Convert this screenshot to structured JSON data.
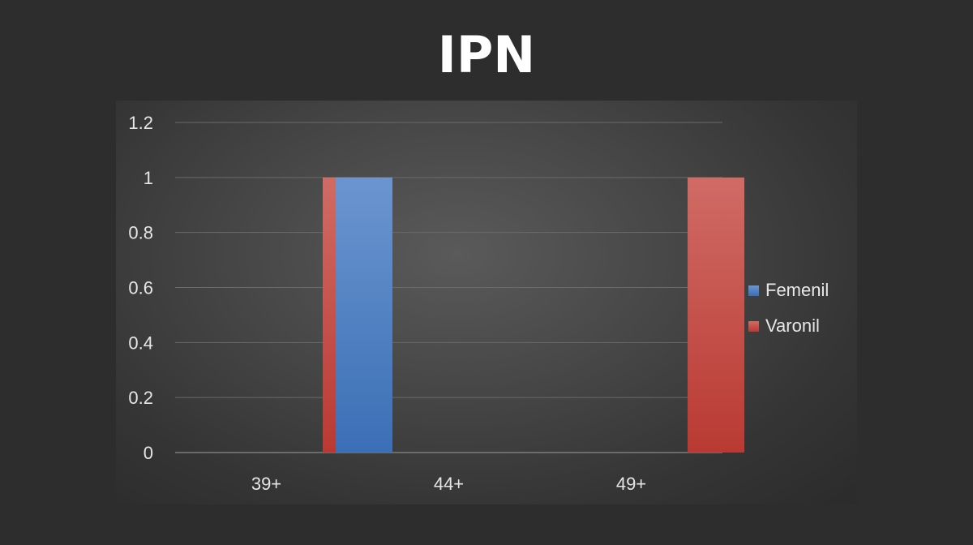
{
  "slide": {
    "title": "IPN"
  },
  "chart_data": {
    "type": "bar",
    "title": "",
    "xlabel": "",
    "ylabel": "",
    "categories": [
      "39+",
      "44+",
      "49+"
    ],
    "series": [
      {
        "name": "Femenil",
        "values": [
          0,
          1,
          0
        ],
        "color": "#4a7fc4"
      },
      {
        "name": "Varonil",
        "values": [
          1,
          0,
          1
        ],
        "color": "#c9473f"
      }
    ],
    "ylim": [
      0,
      1.2
    ],
    "yticks": [
      "0",
      "0.2",
      "0.4",
      "0.6",
      "0.8",
      "1",
      "1.2"
    ],
    "grid": true,
    "legend_position": "right"
  }
}
